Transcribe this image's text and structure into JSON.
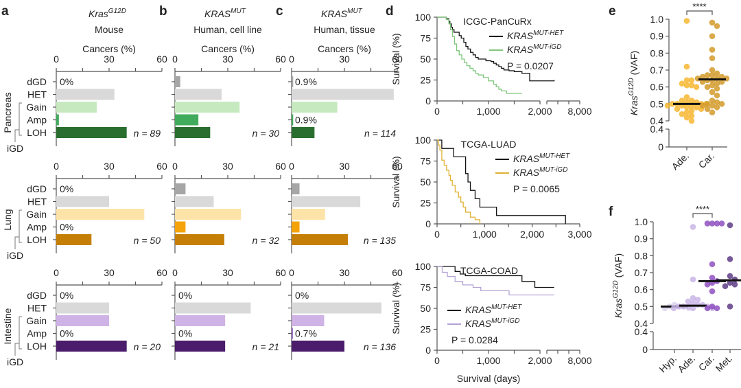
{
  "chart_data": [
    {
      "panel": "a-b-c",
      "type": "bar",
      "orientation": "horizontal",
      "xlabel": "Cancers (%)",
      "xlim": [
        0,
        60
      ],
      "xticks": [
        0,
        30,
        60
      ],
      "categories": [
        "dGD",
        "HET",
        "Gain",
        "Amp",
        "LOH"
      ],
      "bracket_label": "iGD",
      "columns": [
        {
          "letter": "a",
          "gene": "Kras",
          "gene_sup": "G12D",
          "subtitle": "Mouse"
        },
        {
          "letter": "b",
          "gene": "KRAS",
          "gene_sup": "MUT",
          "subtitle": "Human, cell line"
        },
        {
          "letter": "c",
          "gene": "KRAS",
          "gene_sup": "MUT",
          "subtitle": "Human, tissue"
        }
      ],
      "rows": [
        {
          "tissue": "Pancreas",
          "colors": [
            "#a6a6a6",
            "#d9d9d9",
            "#c7e9c0",
            "#41ab5d",
            "#2a6e2f"
          ],
          "panels": [
            {
              "values": [
                0,
                33,
                23,
                1.5,
                40
              ],
              "labels": [
                "0%",
                null,
                null,
                null,
                null
              ],
              "n": "n = 89"
            },
            {
              "values": [
                3,
                26.5,
                36.7,
                13.3,
                20
              ],
              "labels": [
                null,
                null,
                null,
                null,
                null
              ],
              "n": "n = 30"
            },
            {
              "values": [
                0.9,
                58,
                26,
                0.9,
                13
              ],
              "labels": [
                "0.9%",
                null,
                null,
                "0.9%",
                null
              ],
              "n": "n = 114"
            }
          ]
        },
        {
          "tissue": "Lung",
          "colors": [
            "#a6a6a6",
            "#d9d9d9",
            "#fde3a7",
            "#f5a30a",
            "#c57f07"
          ],
          "panels": [
            {
              "values": [
                0,
                30,
                50,
                0,
                20
              ],
              "labels": [
                "0%",
                null,
                null,
                "0%",
                null
              ],
              "n": "n = 50"
            },
            {
              "values": [
                6,
                22,
                37.5,
                6,
                28
              ],
              "labels": [
                null,
                null,
                null,
                null,
                null
              ],
              "n": "n = 32"
            },
            {
              "values": [
                4.5,
                39,
                19,
                4.5,
                32
              ],
              "labels": [
                null,
                null,
                null,
                null,
                null
              ],
              "n": "n = 135"
            }
          ]
        },
        {
          "tissue": "Intestine",
          "colors": [
            "#a6a6a6",
            "#d9d9d9",
            "#cfb2e6",
            "#8c5cbf",
            "#4a1c6b"
          ],
          "panels": [
            {
              "values": [
                0,
                30,
                30,
                0,
                40
              ],
              "labels": [
                "0%",
                null,
                null,
                "0%",
                null
              ],
              "n": "n = 20"
            },
            {
              "values": [
                0,
                43,
                28.5,
                0,
                28.5
              ],
              "labels": [
                "0%",
                null,
                null,
                "0%",
                null
              ],
              "n": "n = 21"
            },
            {
              "values": [
                0,
                51,
                18.5,
                0.7,
                30
              ],
              "labels": [
                "0%",
                null,
                null,
                "0.7%",
                null
              ],
              "n": "n = 136"
            }
          ]
        }
      ]
    },
    {
      "panel": "d",
      "type": "line",
      "kind": "kaplan-meier",
      "letter": "d",
      "xlabel": "Survival (days)",
      "ylabel": "Survival (%)",
      "ylim": [
        0,
        100
      ],
      "yticks": [
        0,
        25,
        50,
        75,
        100
      ],
      "plots": [
        {
          "title": "ICGC-PanCuRx",
          "xticks_labels": [
            "0",
            "1,000",
            "2,000",
            "8,000"
          ],
          "broken_axis": true,
          "p_label": "P = 0.0207",
          "legend_position": "top-right",
          "series": [
            {
              "name": "KRAS",
              "sup": "MUT-HET",
              "color": "#111111",
              "x": [
                0,
                100,
                180,
                230,
                250,
                280,
                300,
                330,
                400,
                430,
                470,
                520,
                560,
                600,
                650,
                700,
                750,
                800,
                900,
                950,
                1050,
                1100,
                1150,
                1200,
                1250,
                1300,
                1400,
                1500,
                1650,
                1800,
                2000,
                2100,
                2400
              ],
              "y": [
                100,
                100,
                98,
                95,
                92,
                88,
                85,
                82,
                82,
                78,
                75,
                70,
                65,
                62,
                58,
                55,
                52,
                50,
                50,
                48,
                47,
                45,
                43,
                41,
                39,
                37,
                36,
                35,
                33,
                24,
                24,
                24,
                25
              ]
            },
            {
              "name": "KRAS",
              "sup": "MUT-iGD",
              "color": "#7dc67a",
              "x": [
                0,
                100,
                180,
                230,
                260,
                300,
                340,
                380,
                430,
                480,
                530,
                580,
                640,
                700,
                750,
                800,
                900,
                1000,
                1100,
                1150,
                1200,
                1250,
                1350,
                1450,
                1650
              ],
              "y": [
                100,
                100,
                97,
                92,
                85,
                77,
                68,
                60,
                55,
                50,
                46,
                42,
                39,
                36,
                33,
                31,
                28,
                24,
                20,
                17,
                14,
                12,
                9,
                9,
                9
              ]
            }
          ]
        },
        {
          "title": "TCGA-LUAD",
          "xticks_labels": [
            "0",
            "1,000",
            "2,000",
            "3,000"
          ],
          "broken_axis": false,
          "xlim": [
            0,
            3000
          ],
          "p_label": "P = 0.0065",
          "legend_position": "top-right",
          "series": [
            {
              "name": "KRAS",
              "sup": "MUT-HET",
              "color": "#111111",
              "x": [
                0,
                100,
                350,
                600,
                650,
                700,
                800,
                900,
                1250,
                2700
              ],
              "y": [
                100,
                90,
                80,
                60,
                50,
                40,
                30,
                20,
                10,
                0
              ]
            },
            {
              "name": "KRAS",
              "sup": "MUT-iGD",
              "color": "#e0b030",
              "x": [
                0,
                30,
                60,
                100,
                150,
                200,
                250,
                280,
                320,
                380,
                450,
                500,
                550,
                600,
                700,
                800,
                900
              ],
              "y": [
                100,
                94,
                88,
                76,
                70,
                64,
                58,
                52,
                46,
                38,
                32,
                26,
                20,
                14,
                8,
                5,
                0
              ]
            }
          ]
        },
        {
          "title": "TCGA-COAD",
          "xticks_labels": [
            "0",
            "1,000",
            "2,000",
            "8,000"
          ],
          "broken_axis": true,
          "p_label": "P = 0.0284",
          "legend_position": "center-left",
          "series": [
            {
              "name": "KRAS",
              "sup": "MUT-HET",
              "color": "#111111",
              "x": [
                0,
                300,
                350,
                450,
                550,
                1650,
                1900,
                2000,
                2400
              ],
              "y": [
                100,
                100,
                94,
                91,
                89,
                82,
                75,
                75,
                75
              ]
            },
            {
              "name": "KRAS",
              "sup": "MUT-iGD",
              "color": "#b3a3d4",
              "x": [
                0,
                100,
                200,
                350,
                500,
                700,
                850,
                1400,
                2000,
                2400
              ],
              "y": [
                100,
                93,
                88,
                82,
                78,
                75,
                71,
                66,
                66,
                66
              ]
            }
          ]
        }
      ]
    },
    {
      "panel": "e",
      "type": "scatter",
      "letter": "e",
      "ylabel_main": "Kras",
      "ylabel_sup": "G12D",
      "ylabel_suffix": " (VAF)",
      "yticks_upper": [
        "1.0",
        "0.9",
        "0.8",
        "0.7",
        "0.6",
        "0.5",
        "0.4"
      ],
      "yticks_lower": [
        "0.4",
        "0"
      ],
      "ylim": [
        0.4,
        1.0
      ],
      "categories": [
        "Ade.",
        "Car."
      ],
      "significance": "****",
      "groups": [
        {
          "name": "Ade.",
          "color": "#f7b733",
          "median": 0.5,
          "values": [
            0.99,
            0.72,
            0.64,
            0.64,
            0.62,
            0.61,
            0.61,
            0.6,
            0.54,
            0.52,
            0.52,
            0.51,
            0.51,
            0.5,
            0.5,
            0.5,
            0.5,
            0.49,
            0.49,
            0.49,
            0.48,
            0.48,
            0.47,
            0.47,
            0.46,
            0.45,
            0.44,
            0.43,
            0.42,
            0.4
          ]
        },
        {
          "name": "Car.",
          "color": "#d29a2a",
          "median": 0.645,
          "values": [
            0.98,
            0.96,
            0.9,
            0.82,
            0.77,
            0.7,
            0.68,
            0.67,
            0.67,
            0.66,
            0.66,
            0.65,
            0.65,
            0.65,
            0.64,
            0.64,
            0.63,
            0.63,
            0.62,
            0.61,
            0.6,
            0.59,
            0.57,
            0.55,
            0.52,
            0.51,
            0.5,
            0.5,
            0.49,
            0.49,
            0.48,
            0.47,
            0.45
          ]
        }
      ]
    },
    {
      "panel": "f",
      "type": "scatter",
      "letter": "f",
      "ylabel_main": "Kras",
      "ylabel_sup": "G12D",
      "ylabel_suffix": " (VAF)",
      "yticks_upper": [
        "1.0",
        "0.9",
        "0.8",
        "0.7",
        "0.6",
        "0.5",
        "0.4"
      ],
      "yticks_lower": [
        "0.4",
        "0"
      ],
      "ylim": [
        0.4,
        1.0
      ],
      "categories": [
        "Hyp.",
        "Ade.",
        "Car.",
        "Met."
      ],
      "significance": "****",
      "groups": [
        {
          "name": "Hyp.",
          "color": "#ddd5ec",
          "median": 0.5,
          "values": [
            0.51,
            0.5,
            0.5,
            0.5,
            0.49,
            0.49
          ]
        },
        {
          "name": "Ade.",
          "color": "#c9b5e6",
          "median": 0.505,
          "values": [
            0.97,
            0.66,
            0.55,
            0.54,
            0.53,
            0.52,
            0.51,
            0.51,
            0.5,
            0.5,
            0.5,
            0.5,
            0.49,
            0.49,
            0.49
          ]
        },
        {
          "name": "Car.",
          "color": "#8e50c0",
          "median": 0.65,
          "values": [
            0.99,
            0.99,
            0.99,
            0.99,
            0.75,
            0.67,
            0.65,
            0.64,
            0.63,
            0.59,
            0.5,
            0.49,
            0.49
          ]
        },
        {
          "name": "Met.",
          "color": "#5e3c87",
          "median": 0.655,
          "values": [
            0.98,
            0.78,
            0.68,
            0.66,
            0.64,
            0.63,
            0.62,
            0.5
          ]
        }
      ]
    }
  ]
}
